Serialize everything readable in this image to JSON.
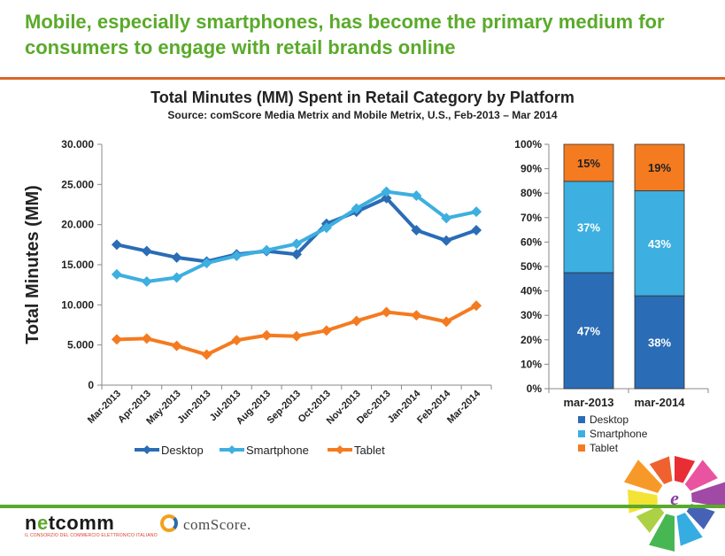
{
  "headline": "Mobile, especially smartphones, has become the primary medium for consumers to engage with retail brands online",
  "footer": {
    "netcomm_logo": "netcomm",
    "netcomm_tagline": "IL CONSORZIO DEL COMMERCIO ELETTRONICO ITALIANO",
    "comscore_logo": "comScore."
  },
  "chart_data": [
    {
      "type": "line",
      "title": "Total Minutes (MM) Spent in Retail Category by Platform",
      "subtitle": "Source: comScore Media Metrix and Mobile Metrix, U.S., Feb-2013 – Mar 2014",
      "ylabel": "Total Minutes (MM)",
      "ylim": [
        0,
        30000
      ],
      "yticks": [
        0,
        5000,
        10000,
        15000,
        20000,
        25000,
        30000
      ],
      "ytick_labels": [
        "0",
        "5.000",
        "10.000",
        "15.000",
        "20.000",
        "25.000",
        "30.000"
      ],
      "categories": [
        "Mar-2013",
        "Apr-2013",
        "May-2013",
        "Jun-2013",
        "Jul-2013",
        "Aug-2013",
        "Sep-2013",
        "Oct-2013",
        "Nov-2013",
        "Dec-2013",
        "Jan-2014",
        "Feb-2014",
        "Mar-2014"
      ],
      "series": [
        {
          "name": "Desktop",
          "color": "#2a6cb5",
          "values": [
            17500,
            16700,
            15900,
            15400,
            16300,
            16700,
            16300,
            20100,
            21600,
            23300,
            19300,
            18000,
            19300
          ]
        },
        {
          "name": "Smartphone",
          "color": "#3dafe0",
          "values": [
            13800,
            12900,
            13400,
            15200,
            16100,
            16800,
            17600,
            19600,
            22000,
            24100,
            23600,
            20800,
            21600
          ]
        },
        {
          "name": "Tablet",
          "color": "#f47b20",
          "values": [
            5700,
            5800,
            4900,
            3800,
            5600,
            6200,
            6100,
            6800,
            8000,
            9100,
            8700,
            7900,
            9900
          ]
        }
      ],
      "legend": "bottom"
    },
    {
      "type": "bar",
      "stacked": true,
      "categories": [
        "mar-2013",
        "mar-2014"
      ],
      "ylim": [
        0,
        100
      ],
      "ytick_labels": [
        "0%",
        "10%",
        "20%",
        "30%",
        "40%",
        "50%",
        "60%",
        "70%",
        "80%",
        "90%",
        "100%"
      ],
      "series": [
        {
          "name": "Desktop",
          "color": "#2a6cb5",
          "values": [
            47,
            38
          ],
          "labels": [
            "47%",
            "38%"
          ]
        },
        {
          "name": "Smartphone",
          "color": "#3dafe0",
          "values": [
            37,
            43
          ],
          "labels": [
            "37%",
            "43%"
          ]
        },
        {
          "name": "Tablet",
          "color": "#f47b20",
          "values": [
            15,
            19
          ],
          "labels": [
            "15%",
            "19%"
          ]
        }
      ],
      "legend": "bottom"
    }
  ]
}
